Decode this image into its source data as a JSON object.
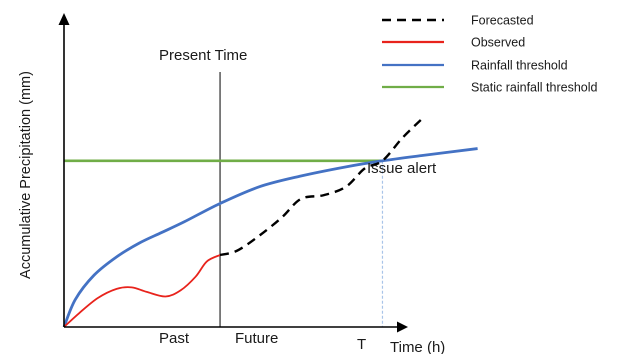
{
  "chart_data": {
    "type": "line",
    "title": "",
    "xlabel": "Time (h)",
    "ylabel": "Accumulative Precipitation (mm)",
    "xlim": [
      0,
      10
    ],
    "ylim": [
      0,
      10
    ],
    "grid": false,
    "legend_position": "top-right",
    "annotations": {
      "present_time": "Present Time",
      "issue_alert": "Issue alert",
      "past": "Past",
      "future": "Future",
      "t_marker": "T"
    },
    "present_time_x": 4.15,
    "alert_time_x": 8.47,
    "series": [
      {
        "name": "Forecasted",
        "color": "#000000",
        "dash": true,
        "x": [
          4.15,
          4.6,
          5.2,
          5.8,
          6.3,
          6.9,
          7.5,
          8.0,
          8.47,
          9.0,
          9.5
        ],
        "y": [
          2.36,
          2.5,
          3.0,
          3.6,
          4.2,
          4.32,
          4.6,
          5.2,
          5.45,
          6.2,
          6.8
        ]
      },
      {
        "name": "Observed",
        "color": "#e8231c",
        "dash": false,
        "x": [
          0.0,
          0.4,
          0.9,
          1.4,
          1.8,
          2.2,
          2.7,
          3.1,
          3.5,
          3.8,
          4.15
        ],
        "y": [
          0.0,
          0.45,
          0.95,
          1.25,
          1.3,
          1.15,
          1.0,
          1.2,
          1.65,
          2.15,
          2.36
        ]
      },
      {
        "name": "Rainfall threshold",
        "color": "#4472c4",
        "dash": false,
        "x": [
          0.0,
          0.3,
          0.8,
          1.4,
          2.0,
          2.6,
          3.2,
          4.15,
          5.2,
          6.3,
          7.5,
          8.47,
          9.5,
          11.0
        ],
        "y": [
          0.0,
          0.9,
          1.7,
          2.3,
          2.75,
          3.1,
          3.45,
          4.05,
          4.6,
          4.95,
          5.25,
          5.45,
          5.62,
          5.85
        ]
      },
      {
        "name": "Static rainfall threshold",
        "color": "#70ad47",
        "dash": false,
        "x": [
          0.0,
          8.47
        ],
        "y": [
          5.45,
          5.45
        ]
      }
    ]
  }
}
